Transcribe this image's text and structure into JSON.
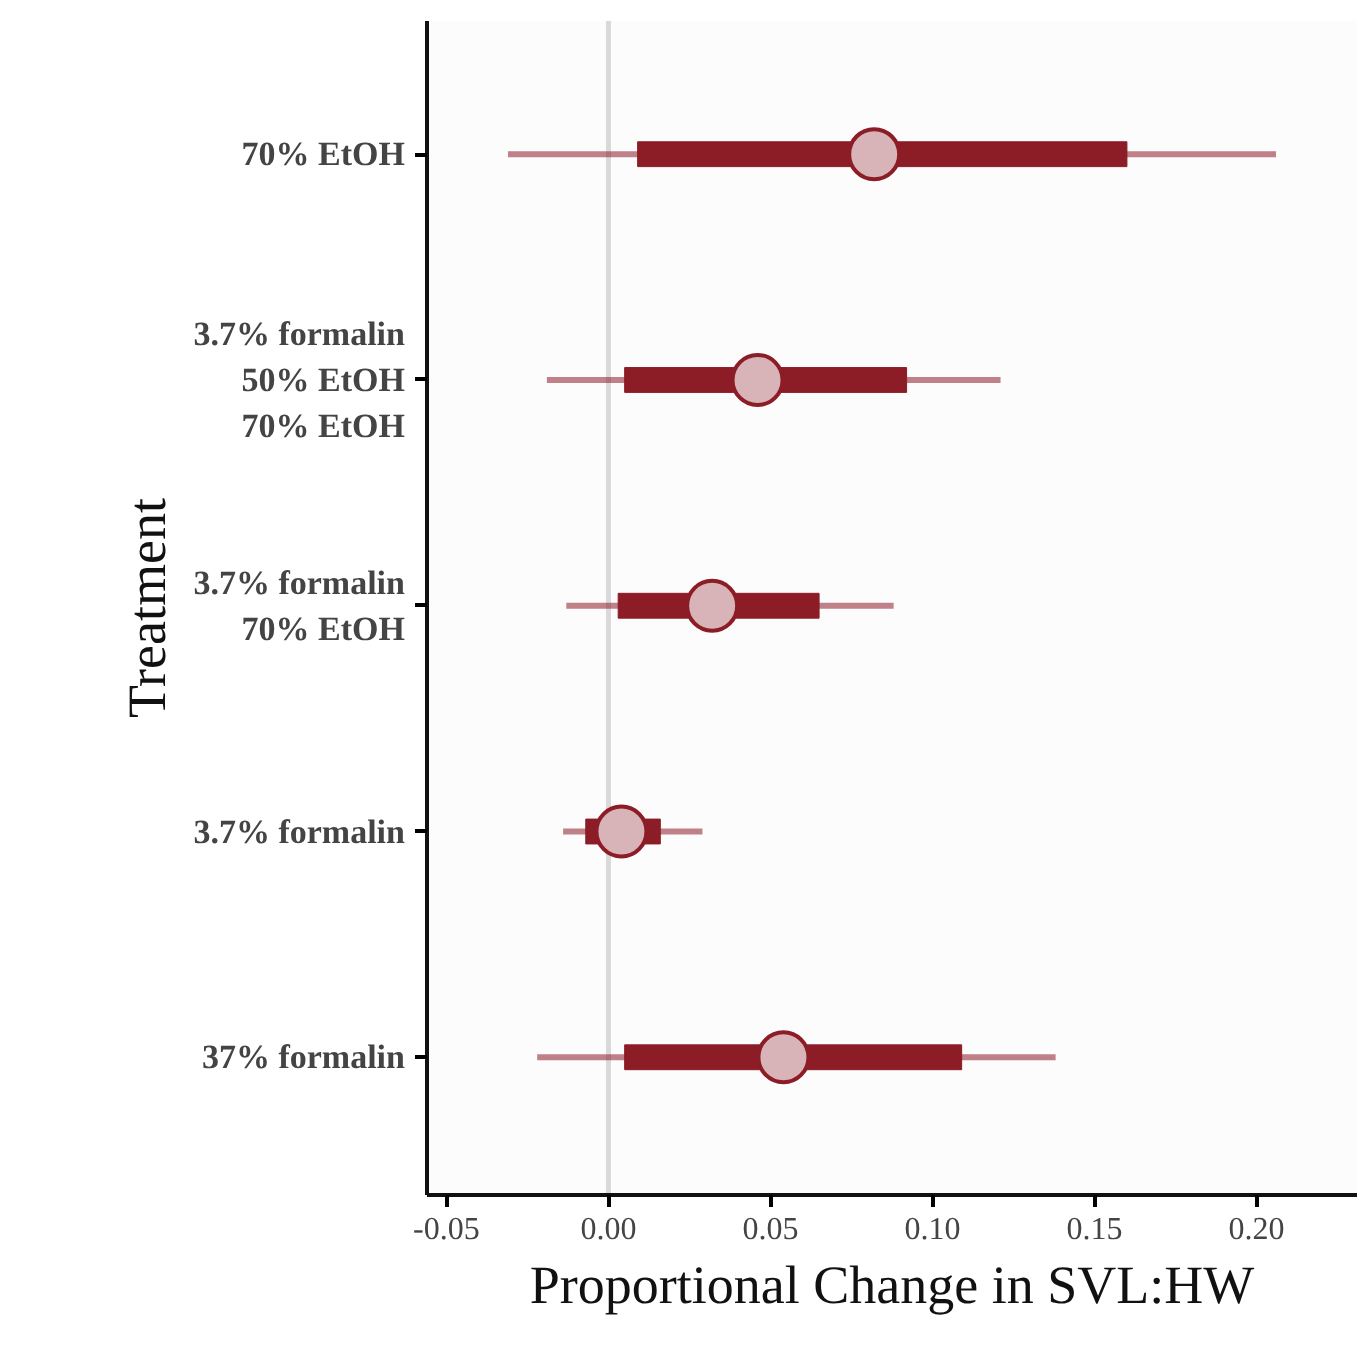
{
  "chart_data": {
    "type": "box",
    "orientation": "horizontal",
    "xlabel": "Proportional Change in SVL:HW",
    "ylabel": "Treatment",
    "categories": [
      "70% EtOH",
      "3.7% formalin\n50% EtOH\n70% EtOH",
      "3.7% formalin\n70% EtOH",
      "3.7% formalin",
      "37% formalin"
    ],
    "series": [
      {
        "color": "#8c1c26",
        "boxes": [
          {
            "low": -0.031,
            "q1": 0.009,
            "median": 0.082,
            "q3": 0.16,
            "high": 0.206
          },
          {
            "low": -0.019,
            "q1": 0.005,
            "median": 0.046,
            "q3": 0.092,
            "high": 0.121
          },
          {
            "low": -0.013,
            "q1": 0.003,
            "median": 0.032,
            "q3": 0.065,
            "high": 0.088
          },
          {
            "low": -0.014,
            "q1": -0.007,
            "median": 0.004,
            "q3": 0.016,
            "high": 0.029
          },
          {
            "low": -0.022,
            "q1": 0.005,
            "median": 0.054,
            "q3": 0.109,
            "high": 0.138
          }
        ]
      }
    ],
    "xlim": [
      -0.056,
      0.231
    ],
    "xticks": [
      {
        "value": -0.05,
        "label": "-0.05"
      },
      {
        "value": 0,
        "label": "0.00"
      },
      {
        "value": 0.05,
        "label": "0.05"
      },
      {
        "value": 0.1,
        "label": "0.10"
      },
      {
        "value": 0.15,
        "label": "0.15"
      },
      {
        "value": 0.2,
        "label": "0.20"
      }
    ],
    "ref_lines": [
      {
        "axis": "x",
        "value": 0,
        "color": "#d9d9d9"
      }
    ],
    "grid": false
  }
}
